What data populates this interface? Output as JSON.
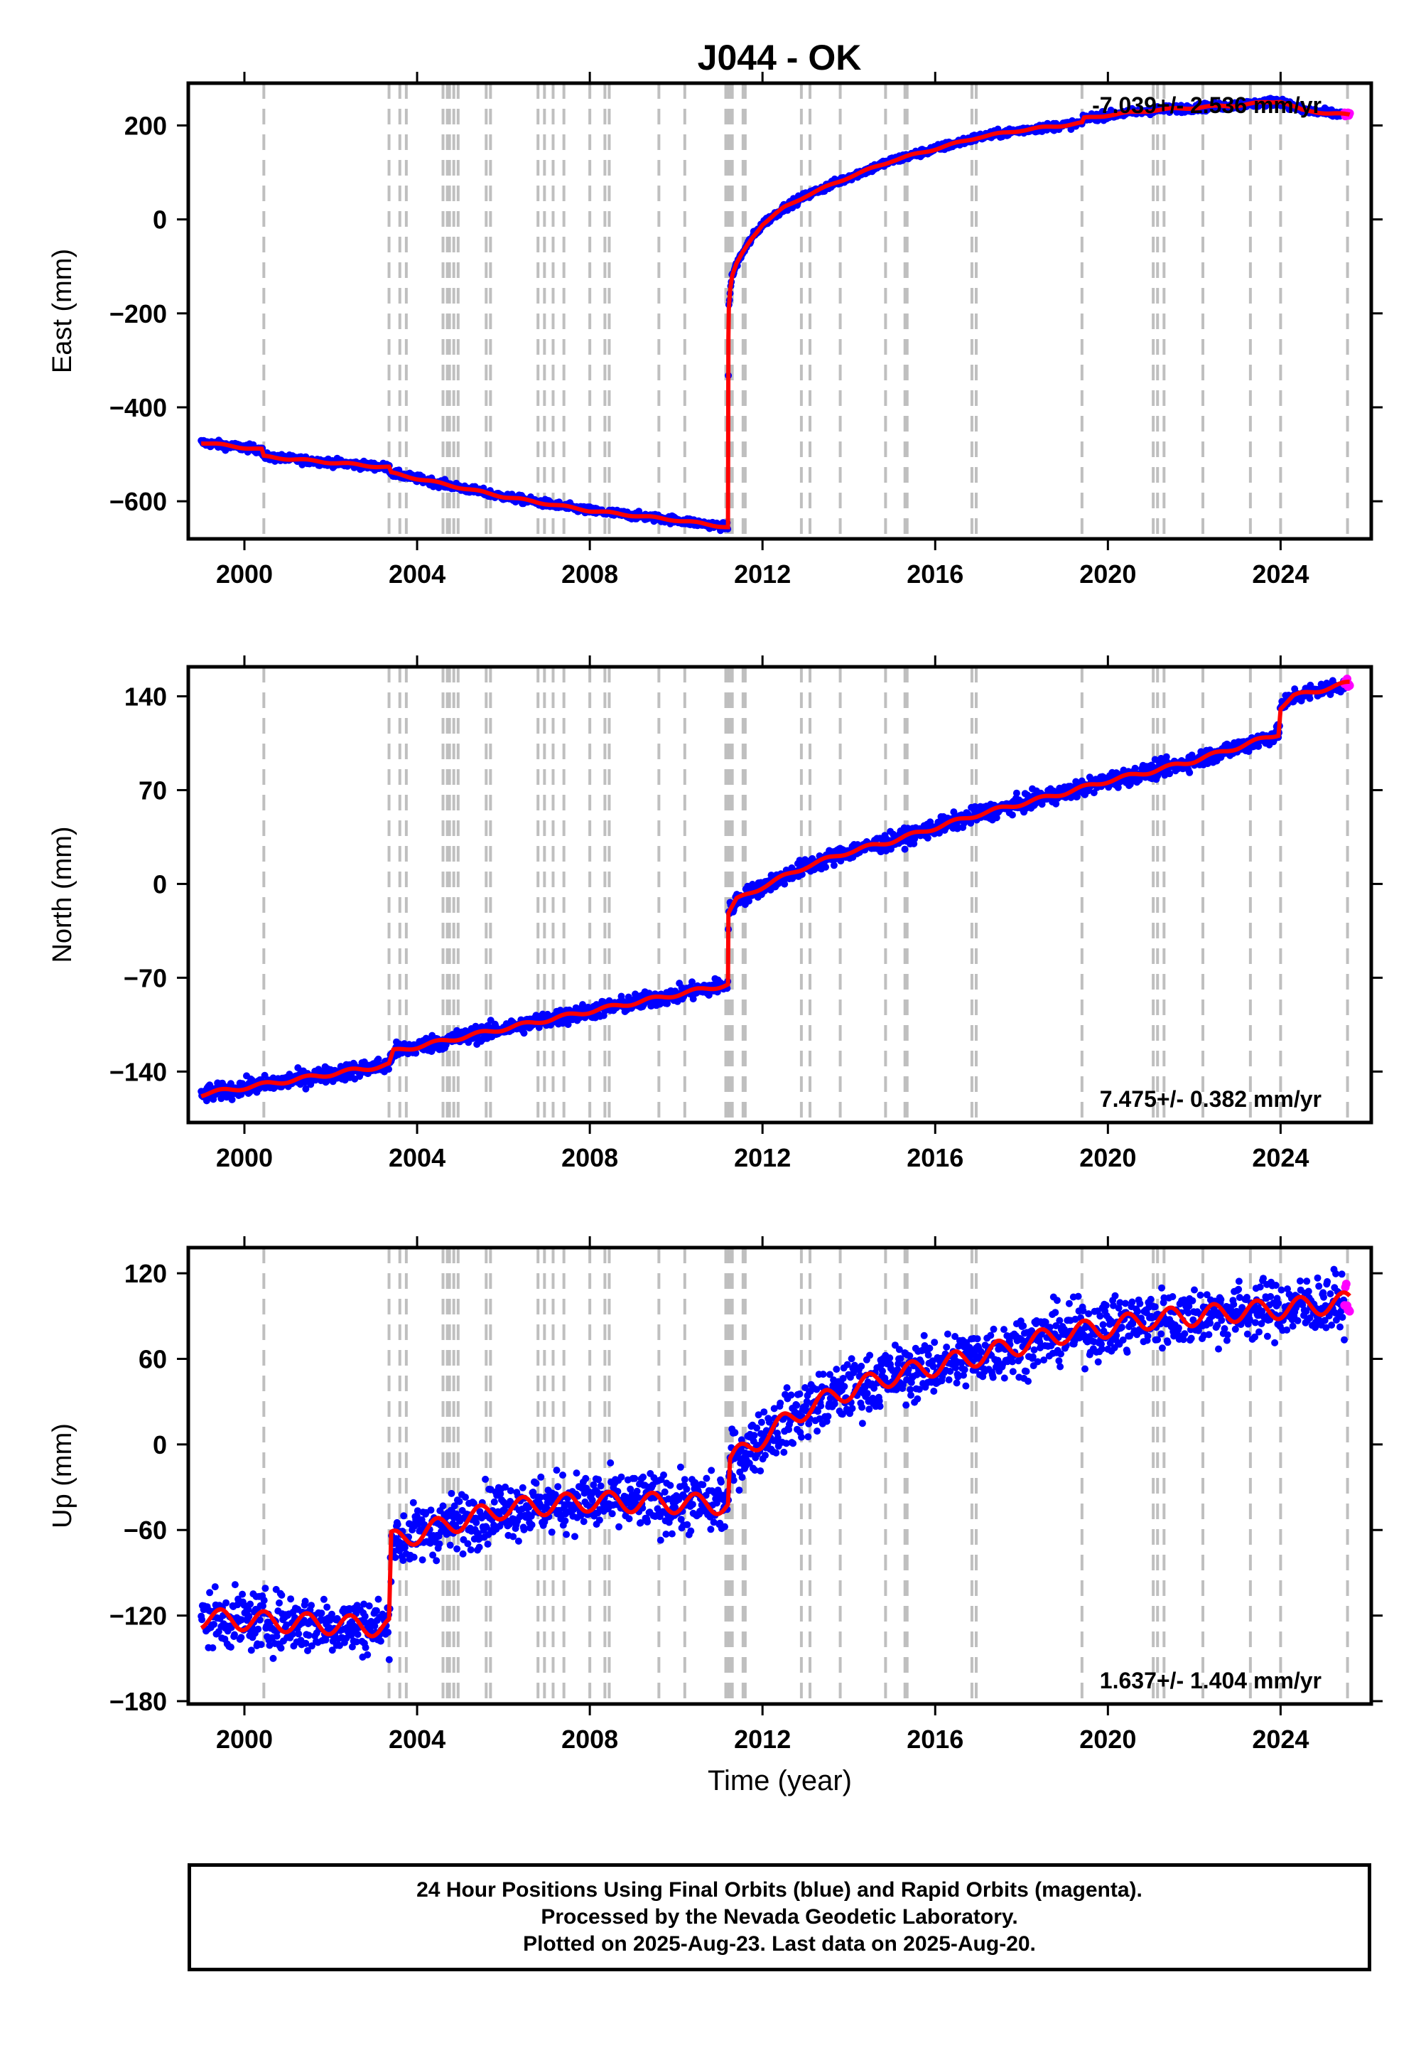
{
  "chart_data": {
    "title": "J044 - OK",
    "type": "scatter",
    "x_label": "Time (year)",
    "x_range": [
      1998.7,
      2026.1
    ],
    "x_ticks": [
      2000,
      2004,
      2008,
      2012,
      2016,
      2020,
      2024
    ],
    "x_tick_labels": [
      "2000",
      "2004",
      "2008",
      "2012",
      "2016",
      "2020",
      "2024"
    ],
    "event_lines": [
      2000.45,
      2003.35,
      2003.6,
      2003.75,
      2004.6,
      2004.7,
      2004.75,
      2004.85,
      2004.95,
      2005.6,
      2005.7,
      2006.8,
      2006.95,
      2007.15,
      2007.4,
      2008.0,
      2008.35,
      2008.45,
      2009.6,
      2010.2,
      2011.15,
      2011.2,
      2011.25,
      2011.3,
      2011.55,
      2011.6,
      2012.9,
      2013.1,
      2013.8,
      2014.85,
      2015.3,
      2015.35,
      2016.85,
      2016.95,
      2019.4,
      2021.05,
      2021.15,
      2021.3,
      2022.2,
      2023.3,
      2024.0,
      2025.55
    ],
    "series_legend": {
      "final_orbits_color": "#0000ff",
      "rapid_orbits_color": "#ff00ff",
      "model_color": "#ff0000",
      "event_line_color": "#bfbfbf"
    },
    "panels": [
      {
        "name": "east",
        "ylabel": "East (mm)",
        "ylim": [
          -680,
          290
        ],
        "y_ticks": [
          200,
          0,
          -200,
          -400,
          -600
        ],
        "y_tick_labels": [
          "200",
          "0",
          "−200",
          "−400",
          "−600"
        ],
        "velocity_text": "-7.039+/- 2.536 mm/yr",
        "velocity_position": "top-right",
        "noise": 4,
        "model": {
          "x": [
            1999.0,
            2000.4,
            2000.45,
            2003.35,
            2003.4,
            2006.0,
            2008.0,
            2010.0,
            2011.2,
            2011.21,
            2011.22,
            2011.25,
            2011.3,
            2011.4,
            2011.55,
            2011.75,
            2012.0,
            2012.5,
            2013.0,
            2014.0,
            2015.0,
            2016.0,
            2017.0,
            2018.0,
            2019.4,
            2019.45,
            2020.0,
            2021.0,
            2022.0,
            2023.0,
            2024.0,
            2024.5,
            2025.6
          ],
          "y": [
            -475,
            -490,
            -505,
            -528,
            -540,
            -590,
            -620,
            -640,
            -655,
            -250,
            -190,
            -150,
            -120,
            -95,
            -70,
            -40,
            -10,
            25,
            50,
            90,
            125,
            150,
            175,
            190,
            205,
            215,
            222,
            232,
            238,
            243,
            252,
            232,
            222
          ]
        }
      },
      {
        "name": "north",
        "ylabel": "North (mm)",
        "ylim": [
          -178,
          162
        ],
        "y_ticks": [
          140,
          70,
          0,
          -70,
          -140
        ],
        "y_tick_labels": [
          "140",
          "70",
          "0",
          "−70",
          "−140"
        ],
        "velocity_text": "7.475+/- 0.382 mm/yr",
        "velocity_position": "bottom-right",
        "noise": 3,
        "model": {
          "x": [
            1999.0,
            2003.35,
            2003.45,
            2006.0,
            2008.0,
            2011.2,
            2011.21,
            2011.4,
            2011.7,
            2012.0,
            2013.0,
            2014.0,
            2015.0,
            2016.0,
            2017.0,
            2018.0,
            2019.0,
            2020.0,
            2021.0,
            2022.0,
            2023.0,
            2023.95,
            2024.0,
            2024.3,
            2025.6
          ],
          "y": [
            -157,
            -135,
            -125,
            -108,
            -95,
            -75,
            -22,
            -12,
            -7,
            -2,
            13,
            24,
            32,
            42,
            52,
            60,
            68,
            77,
            84,
            92,
            102,
            112,
            132,
            140,
            150
          ]
        }
      },
      {
        "name": "up",
        "ylabel": "Up (mm)",
        "ylim": [
          -182,
          138
        ],
        "y_ticks": [
          120,
          60,
          0,
          -60,
          -120,
          -180
        ],
        "y_tick_labels": [
          "120",
          "60",
          "0",
          "−60",
          "−120",
          "−180"
        ],
        "velocity_text": "1.637+/- 1.404 mm/yr",
        "velocity_position": "bottom-right",
        "noise": 10,
        "model": {
          "x": [
            1999.0,
            2003.35,
            2003.4,
            2006.0,
            2008.0,
            2011.2,
            2011.25,
            2012.0,
            2013.0,
            2014.0,
            2015.0,
            2016.0,
            2017.0,
            2018.0,
            2019.0,
            2020.0,
            2021.0,
            2022.0,
            2023.0,
            2024.0,
            2025.6
          ],
          "y": [
            -122,
            -128,
            -68,
            -45,
            -40,
            -42,
            -12,
            5,
            25,
            38,
            48,
            55,
            62,
            70,
            78,
            82,
            88,
            90,
            93,
            95,
            100
          ]
        }
      }
    ]
  },
  "footer": {
    "line1": "24 Hour Positions Using Final Orbits (blue) and Rapid Orbits (magenta).",
    "line2": "Processed by the Nevada Geodetic Laboratory.",
    "line3": "Plotted on 2025-Aug-23. Last data on 2025-Aug-20."
  }
}
